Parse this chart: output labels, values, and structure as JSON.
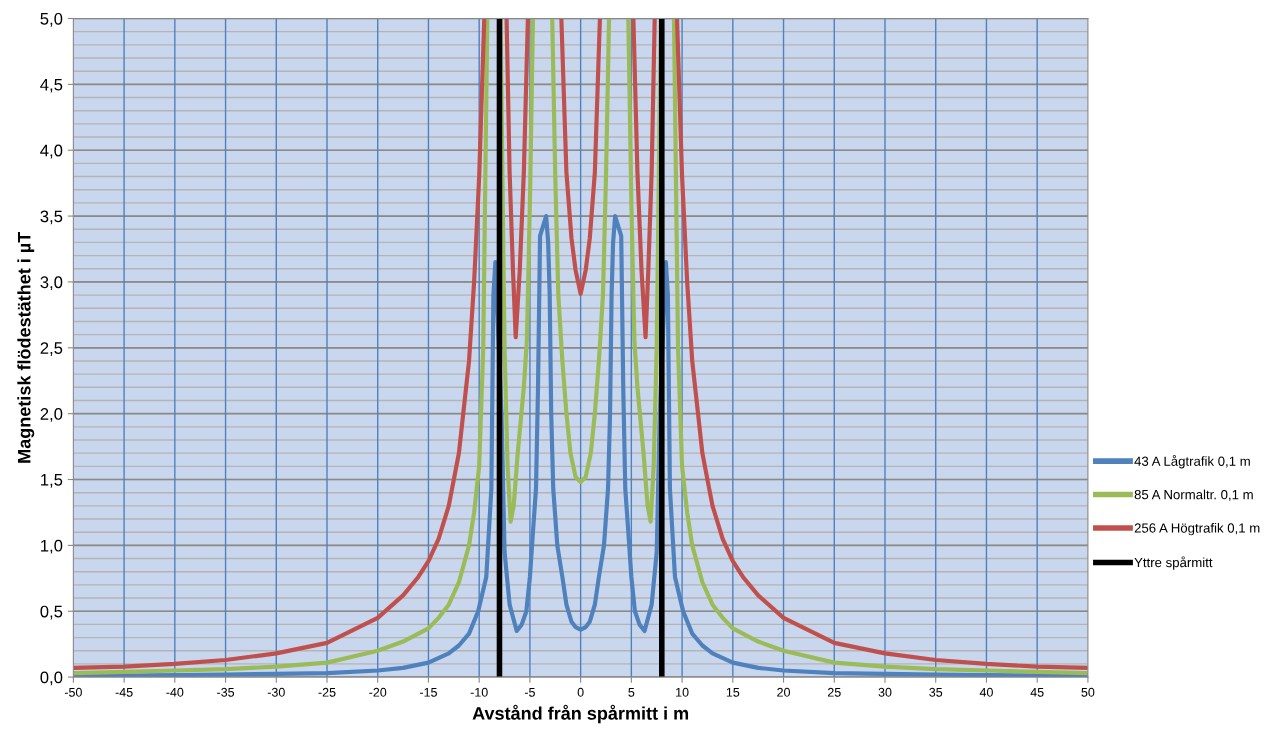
{
  "chart_data": {
    "type": "line",
    "xlabel": "Avstånd från spårmitt i m",
    "ylabel": "Magnetisk flödestäthet i µT",
    "xlim": [
      -50,
      50
    ],
    "xticks": [
      -50,
      -45,
      -40,
      -35,
      -30,
      -25,
      -20,
      -15,
      -10,
      -5,
      0,
      5,
      10,
      15,
      20,
      25,
      30,
      35,
      40,
      45,
      50
    ],
    "ylim": [
      0,
      5
    ],
    "yticks": [
      {
        "value": 0,
        "label": "0,0"
      },
      {
        "value": 0.5,
        "label": "0,5"
      },
      {
        "value": 1,
        "label": "1,0"
      },
      {
        "value": 1.5,
        "label": "1,5"
      },
      {
        "value": 2,
        "label": "2,0"
      },
      {
        "value": 2.5,
        "label": "2,5"
      },
      {
        "value": 3,
        "label": "3,0"
      },
      {
        "value": 3.5,
        "label": "3,5"
      },
      {
        "value": 4,
        "label": "4,0"
      },
      {
        "value": 4.5,
        "label": "4,5"
      },
      {
        "value": 5,
        "label": "5,0"
      }
    ],
    "grid": true,
    "legend": "right",
    "marker": "none",
    "line_style": "solid",
    "series": [
      {
        "name": "43 A Lågtrafik 0,1 m",
        "color": "#4f81bd",
        "x": [
          -50,
          -45,
          -40,
          -35,
          -30,
          -25,
          -20,
          -17.5,
          -15,
          -13,
          -12,
          -11,
          -10.1,
          -9.3,
          -8.8,
          -8.6,
          -8.4,
          -7.8,
          -7.5,
          -7,
          -6.3,
          -5.8,
          -5.35,
          -5,
          -4.7,
          -4.4,
          -4.2,
          -4,
          -3.4,
          -3.2,
          -3.05,
          -2.9,
          -2.7,
          -2.3,
          -1.8,
          -1.4,
          -0.9,
          -0.5,
          0,
          0.5,
          0.9,
          1.4,
          1.8,
          2.3,
          2.7,
          2.9,
          3.05,
          3.2,
          3.4,
          4,
          4.2,
          4.4,
          4.7,
          5,
          5.35,
          5.8,
          6.3,
          7,
          7.5,
          7.8,
          8.4,
          8.6,
          8.8,
          9.3,
          10.1,
          11,
          12,
          13,
          15,
          17.5,
          20,
          25,
          30,
          35,
          40,
          45,
          50
        ],
        "values": [
          0.01,
          0.012,
          0.015,
          0.02,
          0.025,
          0.03,
          0.05,
          0.07,
          0.11,
          0.18,
          0.24,
          0.33,
          0.5,
          0.76,
          1.43,
          2.9,
          3.15,
          2.0,
          0.95,
          0.55,
          0.35,
          0.4,
          0.5,
          0.76,
          1.1,
          1.43,
          2.2,
          3.35,
          3.5,
          3.3,
          2.9,
          2.0,
          1.43,
          1.0,
          0.76,
          0.55,
          0.42,
          0.38,
          0.36,
          0.38,
          0.42,
          0.55,
          0.76,
          1.0,
          1.43,
          2.0,
          2.9,
          3.3,
          3.5,
          3.35,
          2.2,
          1.43,
          1.1,
          0.76,
          0.5,
          0.4,
          0.35,
          0.55,
          0.95,
          2.0,
          3.15,
          2.9,
          1.43,
          0.76,
          0.5,
          0.33,
          0.24,
          0.18,
          0.11,
          0.07,
          0.05,
          0.03,
          0.025,
          0.02,
          0.015,
          0.012,
          0.01
        ]
      },
      {
        "name": "85 A Normaltr. 0,1 m",
        "color": "#9bbb59",
        "x": [
          -50,
          -45,
          -40,
          -35,
          -30,
          -25,
          -20,
          -17.5,
          -15,
          -14,
          -13,
          -12,
          -11,
          -10.5,
          -10,
          -9.6,
          -9.2,
          -8.5,
          -7.9,
          -7.5,
          -7.2,
          -6.9,
          -6.6,
          -6.2,
          -5.6,
          -5.3,
          -5,
          -4.7,
          -3.8,
          -2.8,
          -2.5,
          -2.2,
          -1.8,
          -1.4,
          -1,
          -0.5,
          0,
          0.5,
          1,
          1.4,
          1.8,
          2.2,
          2.5,
          2.8,
          3.8,
          4.7,
          5,
          5.3,
          5.6,
          6.2,
          6.6,
          6.9,
          7.2,
          7.5,
          7.9,
          8.5,
          9.2,
          9.6,
          10,
          10.5,
          11,
          12,
          13,
          14,
          15,
          17.5,
          20,
          25,
          30,
          35,
          40,
          45,
          50
        ],
        "values": [
          0.03,
          0.04,
          0.05,
          0.06,
          0.08,
          0.11,
          0.2,
          0.27,
          0.37,
          0.45,
          0.55,
          0.72,
          1.0,
          1.25,
          1.6,
          2.5,
          5.0,
          null,
          5.0,
          2.5,
          1.6,
          1.18,
          1.3,
          1.7,
          2.2,
          2.55,
          3.6,
          5.0,
          null,
          5.0,
          3.8,
          2.9,
          2.4,
          2.0,
          1.7,
          1.52,
          1.48,
          1.52,
          1.7,
          2.0,
          2.4,
          2.9,
          3.8,
          5.0,
          null,
          5.0,
          3.6,
          2.55,
          2.2,
          1.7,
          1.3,
          1.18,
          1.6,
          2.5,
          5.0,
          null,
          5.0,
          2.5,
          1.6,
          1.25,
          1.0,
          0.72,
          0.55,
          0.45,
          0.37,
          0.27,
          0.2,
          0.11,
          0.08,
          0.06,
          0.05,
          0.04,
          0.03
        ]
      },
      {
        "name": "256 A Högtrafik 0,1 m",
        "color": "#c0504d",
        "x": [
          -50,
          -45,
          -40,
          -35,
          -30,
          -25,
          -20,
          -17.5,
          -16,
          -15,
          -14,
          -13,
          -12.5,
          -12,
          -11.5,
          -11,
          -10.5,
          -10,
          -9.5,
          -8.4,
          -7.3,
          -7,
          -6.67,
          -6.4,
          -6,
          -5.6,
          -5.2,
          -3.6,
          -1.9,
          -1.4,
          -0.9,
          -0.5,
          0,
          0.5,
          0.9,
          1.4,
          1.9,
          3.6,
          5.2,
          5.6,
          6,
          6.4,
          6.67,
          7,
          7.3,
          8.4,
          9.5,
          10,
          10.5,
          11,
          11.5,
          12,
          12.5,
          13,
          14,
          15,
          16,
          17.5,
          20,
          25,
          30,
          35,
          40,
          45,
          50
        ],
        "values": [
          0.07,
          0.08,
          0.1,
          0.13,
          0.18,
          0.26,
          0.45,
          0.62,
          0.76,
          0.88,
          1.05,
          1.3,
          1.5,
          1.7,
          2.05,
          2.4,
          3.0,
          3.8,
          5.0,
          null,
          5.0,
          3.83,
          3.09,
          2.58,
          3.09,
          3.83,
          5.0,
          null,
          5.0,
          3.83,
          3.33,
          3.09,
          2.91,
          3.09,
          3.33,
          3.83,
          5.0,
          null,
          5.0,
          3.83,
          3.09,
          2.58,
          3.09,
          3.83,
          5.0,
          null,
          5.0,
          3.8,
          3.0,
          2.4,
          2.05,
          1.7,
          1.5,
          1.3,
          1.05,
          0.88,
          0.76,
          0.62,
          0.45,
          0.26,
          0.18,
          0.13,
          0.1,
          0.08,
          0.07
        ]
      },
      {
        "name": "Yttre spårmitt",
        "color": "#000000",
        "x": [
          -8,
          -8,
          0,
          8,
          8
        ],
        "values": [
          0,
          5,
          null,
          0,
          5
        ]
      }
    ]
  }
}
